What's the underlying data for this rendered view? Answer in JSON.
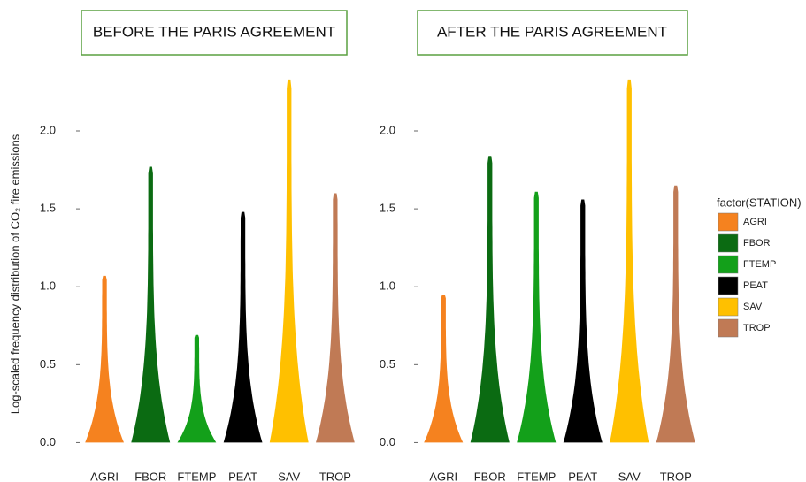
{
  "chart_data": [
    {
      "type": "violin",
      "title": "BEFORE THE PARIS AGREEMENT",
      "ylabel": "Log-scaled frequency distribution of CO₂ fire emissions",
      "categories": [
        "AGRI",
        "FBOR",
        "FTEMP",
        "PEAT",
        "SAV",
        "TROP"
      ],
      "values": [
        1.07,
        1.77,
        0.69,
        1.48,
        2.33,
        1.6
      ],
      "colors": [
        "#f5821f",
        "#0b6b12",
        "#13a01a",
        "#000000",
        "#ffc000",
        "#c07a55"
      ],
      "ylim": [
        -0.06,
        2.42
      ],
      "yticks": [
        {
          "value": 0,
          "label": "0.0"
        },
        0.5,
        {
          "value": 1,
          "label": "1.0"
        },
        1.5,
        {
          "value": 2,
          "label": "2.0"
        }
      ],
      "legend": {
        "title": "factor(STATION)"
      }
    },
    {
      "type": "violin",
      "title": "AFTER THE PARIS AGREEMENT",
      "categories": [
        "AGRI",
        "FBOR",
        "FTEMP",
        "PEAT",
        "SAV",
        "TROP"
      ],
      "values": [
        0.95,
        1.84,
        1.61,
        1.56,
        2.33,
        1.65
      ],
      "colors": [
        "#f5821f",
        "#0b6b12",
        "#13a01a",
        "#000000",
        "#ffc000",
        "#c07a55"
      ],
      "ylim": [
        -0.06,
        2.42
      ],
      "yticks": [
        {
          "value": 0,
          "label": "0.0"
        },
        0.5,
        {
          "value": 1,
          "label": "1.0"
        },
        1.5,
        {
          "value": 2,
          "label": "2.0"
        }
      ]
    }
  ]
}
